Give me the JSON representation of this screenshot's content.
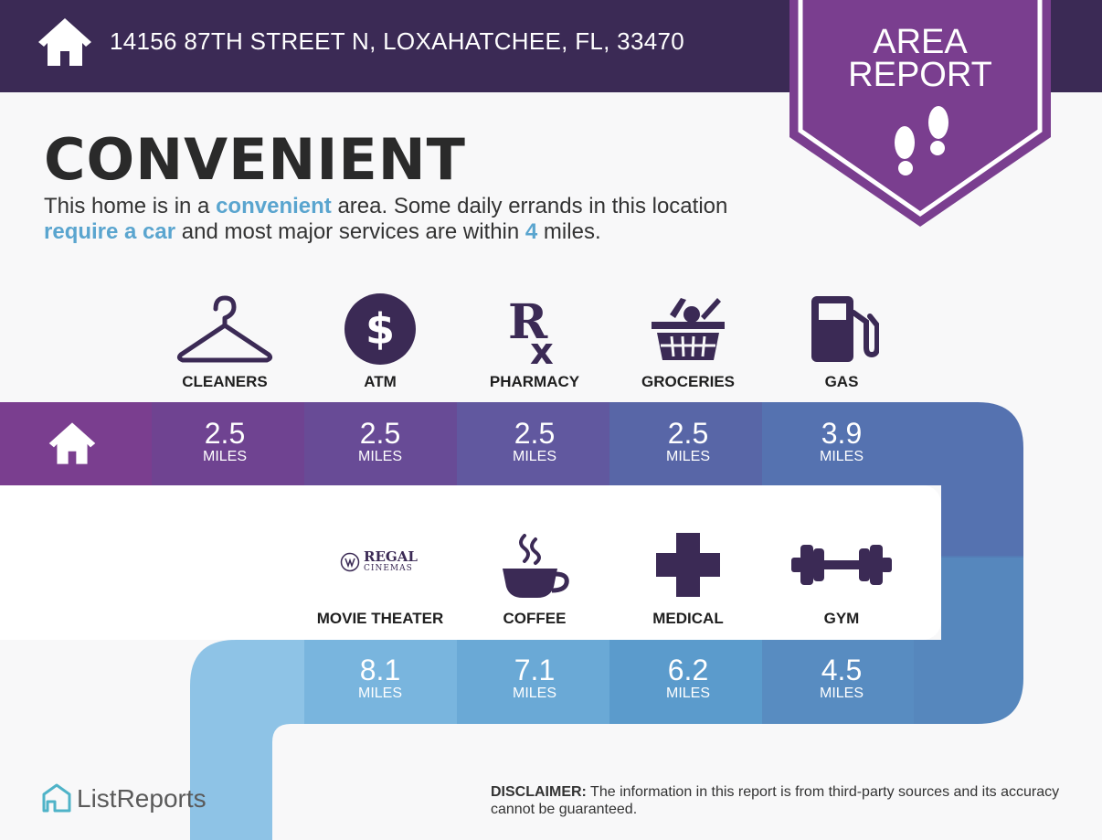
{
  "header": {
    "address": "14156 87TH STREET N, LOXAHATCHEE, FL, 33470",
    "badge_line1": "AREA",
    "badge_line2": "REPORT"
  },
  "summary": {
    "title": "CONVENIENT",
    "text_1": "This home is in a ",
    "text_2": "convenient",
    "text_3": " area. Some daily errands in this location ",
    "text_4": "require a car",
    "text_5": " and most major services are within ",
    "text_6": "4",
    "text_7": " miles."
  },
  "row1": [
    {
      "label": "CLEANERS",
      "icon": "hanger-icon",
      "value": "2.5",
      "unit": "MILES"
    },
    {
      "label": "ATM",
      "icon": "dollar-icon",
      "value": "2.5",
      "unit": "MILES"
    },
    {
      "label": "PHARMACY",
      "icon": "rx-icon",
      "value": "2.5",
      "unit": "MILES"
    },
    {
      "label": "GROCERIES",
      "icon": "basket-icon",
      "value": "2.5",
      "unit": "MILES"
    },
    {
      "label": "GAS",
      "icon": "gas-pump-icon",
      "value": "3.9",
      "unit": "MILES"
    }
  ],
  "row2": [
    {
      "label": "MOVIE THEATER",
      "icon": "regal-cinemas-logo",
      "logo_line1": "REGAL",
      "logo_line2": "CINEMAS",
      "value": "8.1",
      "unit": "MILES"
    },
    {
      "label": "COFFEE",
      "icon": "coffee-cup-icon",
      "value": "7.1",
      "unit": "MILES"
    },
    {
      "label": "MEDICAL",
      "icon": "medical-cross-icon",
      "value": "6.2",
      "unit": "MILES"
    },
    {
      "label": "GYM",
      "icon": "dumbbell-icon",
      "value": "4.5",
      "unit": "MILES"
    }
  ],
  "footer": {
    "brand": "ListReports",
    "disclaimer_label": "DISCLAIMER:",
    "disclaimer_text": " The information in this report is from third-party sources and its accuracy cannot be guaranteed."
  },
  "colors": {
    "header": "#3b2a55",
    "badge": "#7a3e8f",
    "accent": "#5aa5cf",
    "icon": "#3b2a55"
  }
}
